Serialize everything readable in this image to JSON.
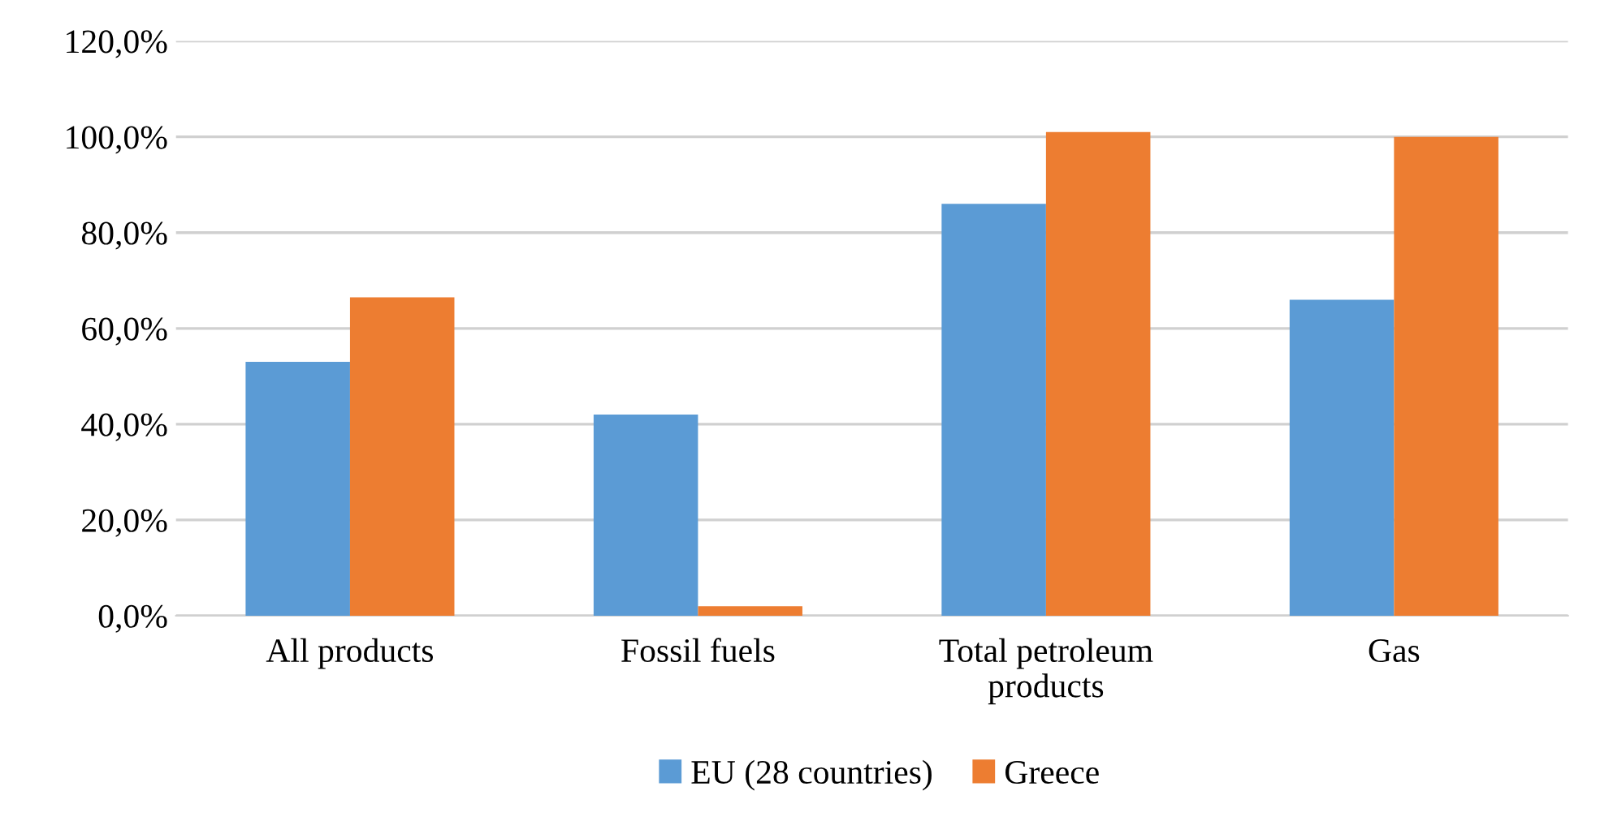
{
  "chart_data": {
    "type": "bar",
    "categories": [
      "All products",
      "Fossil fuels",
      "Total petroleum\nproducts",
      "Gas"
    ],
    "series": [
      {
        "name": "EU (28 countries)",
        "color": "#5b9bd5",
        "values": [
          53,
          42,
          86,
          66
        ]
      },
      {
        "name": "Greece",
        "color": "#ed7d31",
        "values": [
          66.5,
          2,
          101,
          100
        ]
      }
    ],
    "ylim": [
      0,
      120
    ],
    "yticks": [
      {
        "value": 0,
        "label": "0,0%"
      },
      {
        "value": 20,
        "label": "20,0%"
      },
      {
        "value": 40,
        "label": "40,0%"
      },
      {
        "value": 60,
        "label": "60,0%"
      },
      {
        "value": 80,
        "label": "80,0%"
      },
      {
        "value": 100,
        "label": "100,0%"
      },
      {
        "value": 120,
        "label": "120,0%"
      }
    ],
    "grid": "y",
    "legend": "bottom"
  }
}
